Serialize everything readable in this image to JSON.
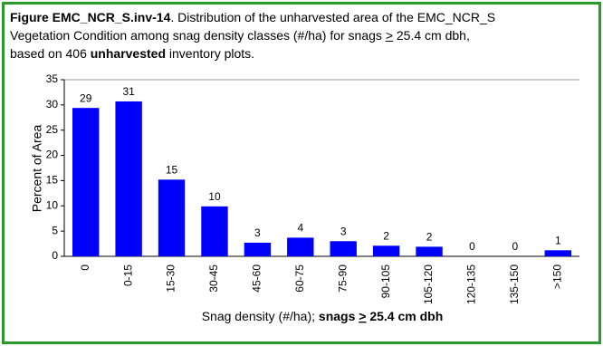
{
  "caption": {
    "lines": [
      [
        "Figure EMC_NCR_S.inv-14",
        ". Distribution of the unharvested area of the EMC_NCR_S"
      ],
      [
        "Vegetation Condition among snag density classes (#/ha) for snags ",
        ">",
        " 25.4 cm dbh,"
      ],
      [
        "based on 406 ",
        "unharvested",
        " inventory plots."
      ]
    ]
  },
  "chart_data": {
    "type": "bar",
    "y_label": "Percent of Area",
    "x_label": [
      "Snag density (#/ha); ",
      "snags ",
      ">",
      " 25.4 cm dbh"
    ],
    "categories": [
      "0",
      "0-15",
      "15-30",
      "30-45",
      "45-60",
      "60-75",
      "75-90",
      "90-105",
      "105-120",
      "120-135",
      "135-150",
      ">150"
    ],
    "values": [
      29.4,
      30.7,
      15.2,
      9.9,
      2.7,
      3.7,
      3.0,
      2.1,
      1.9,
      0,
      0,
      1.2
    ],
    "value_labels": [
      "29",
      "31",
      "15",
      "10",
      "3",
      "4",
      "3",
      "2",
      "2",
      "0",
      "0",
      "1"
    ],
    "color": "#0000ff",
    "ylim": [
      0,
      35
    ],
    "yticks": [
      0,
      5,
      10,
      15,
      20,
      25,
      30,
      35
    ],
    "grid": false
  }
}
